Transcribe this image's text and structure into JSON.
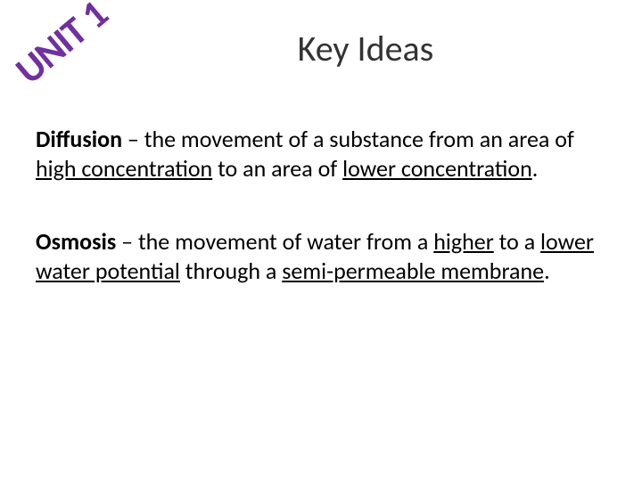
{
  "header": {
    "unit_label": "UNIT 1",
    "title": "Key Ideas",
    "unit_color": "#7030a0",
    "unit_rotation_deg": -40
  },
  "definitions": [
    {
      "term": "Diffusion",
      "separator": " – ",
      "text_parts": [
        {
          "text": "the movement of a substance from an area of ",
          "underline": false
        },
        {
          "text": "high concentration",
          "underline": true
        },
        {
          "text": " to an area of ",
          "underline": false
        },
        {
          "text": "lower concentration",
          "underline": true
        },
        {
          "text": ".",
          "underline": false
        }
      ]
    },
    {
      "term": "Osmosis",
      "separator": " – ",
      "text_parts": [
        {
          "text": "the movement of water from a ",
          "underline": false
        },
        {
          "text": "higher",
          "underline": true
        },
        {
          "text": " to a ",
          "underline": false
        },
        {
          "text": "lower water potential",
          "underline": true
        },
        {
          "text": " through a ",
          "underline": false
        },
        {
          "text": "semi-permeable membrane",
          "underline": true
        },
        {
          "text": ".",
          "underline": false
        }
      ]
    }
  ],
  "styles": {
    "background_color": "#ffffff",
    "title_fontsize": 40,
    "unit_fontsize": 44,
    "body_fontsize": 26,
    "text_color": "#000000",
    "title_color": "#333333"
  }
}
